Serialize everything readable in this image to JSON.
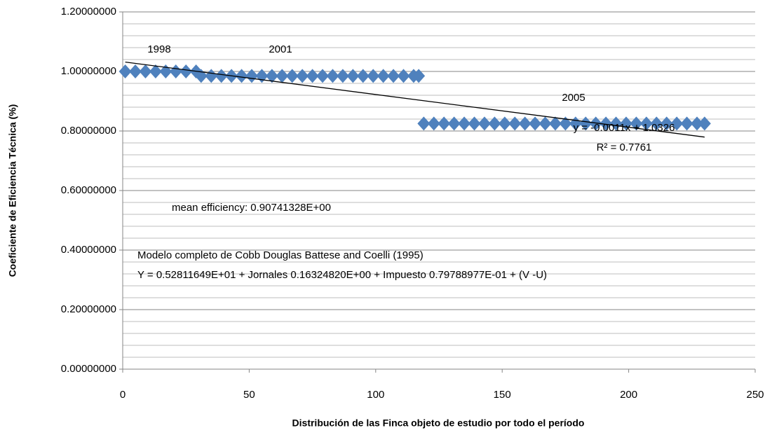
{
  "chart_data": {
    "type": "scatter",
    "x_label": "Distribución de las Finca objeto de estudio por todo el período",
    "y_label": "Coeficiente de Eficiencia Técnica (%)",
    "color": "#4f81bd",
    "x": [
      1,
      5,
      9,
      13,
      17,
      21,
      25,
      29,
      31,
      35,
      39,
      43,
      47,
      51,
      55,
      59,
      63,
      67,
      71,
      75,
      79,
      83,
      87,
      91,
      95,
      99,
      103,
      107,
      111,
      115,
      117,
      119,
      123,
      127,
      131,
      135,
      139,
      143,
      147,
      151,
      155,
      159,
      163,
      167,
      171,
      175,
      179,
      183,
      187,
      191,
      195,
      199,
      203,
      207,
      211,
      215,
      219,
      223,
      227,
      230
    ],
    "values": [
      1.0,
      1.0,
      1.0,
      1.0,
      1.0,
      1.0,
      1.0,
      1.0,
      0.985,
      0.985,
      0.985,
      0.985,
      0.985,
      0.985,
      0.985,
      0.985,
      0.985,
      0.985,
      0.985,
      0.985,
      0.985,
      0.985,
      0.985,
      0.985,
      0.985,
      0.985,
      0.985,
      0.985,
      0.985,
      0.985,
      0.985,
      0.825,
      0.825,
      0.825,
      0.825,
      0.825,
      0.825,
      0.825,
      0.825,
      0.825,
      0.825,
      0.825,
      0.825,
      0.825,
      0.825,
      0.825,
      0.825,
      0.825,
      0.825,
      0.825,
      0.825,
      0.825,
      0.825,
      0.825,
      0.825,
      0.825,
      0.825,
      0.825,
      0.825,
      0.825
    ],
    "trendline": {
      "x": [
        1,
        230
      ],
      "values": [
        1.0315,
        0.7796
      ],
      "color": "#000000"
    },
    "xlim": [
      0,
      250
    ],
    "xticks": [
      0,
      50,
      100,
      150,
      200,
      250
    ],
    "ylim": [
      0,
      1.2
    ],
    "yticks": [
      {
        "value": 0,
        "label": "0.00000000"
      },
      {
        "value": 0.2,
        "label": "0.20000000"
      },
      {
        "value": 0.4,
        "label": "0.40000000"
      },
      {
        "value": 0.6,
        "label": "0.60000000"
      },
      {
        "value": 0.8,
        "label": "0.80000000"
      },
      {
        "value": 1.0,
        "label": "1.00000000"
      },
      {
        "value": 1.2,
        "label": "1.20000000"
      }
    ],
    "grid": true,
    "annotations": [
      "1998",
      "2001",
      "2005",
      "y = -0.0011x + 1.0326",
      "R² = 0.7761",
      "mean efficiency:  0.90741328E+00",
      "Modelo completo de Cobb Douglas Battese and Coelli (1995)",
      "Y = 0.52811649E+01 + Jornales 0.16324820E+00 + Impuesto 0.79788977E-01 + (V -U)"
    ]
  }
}
